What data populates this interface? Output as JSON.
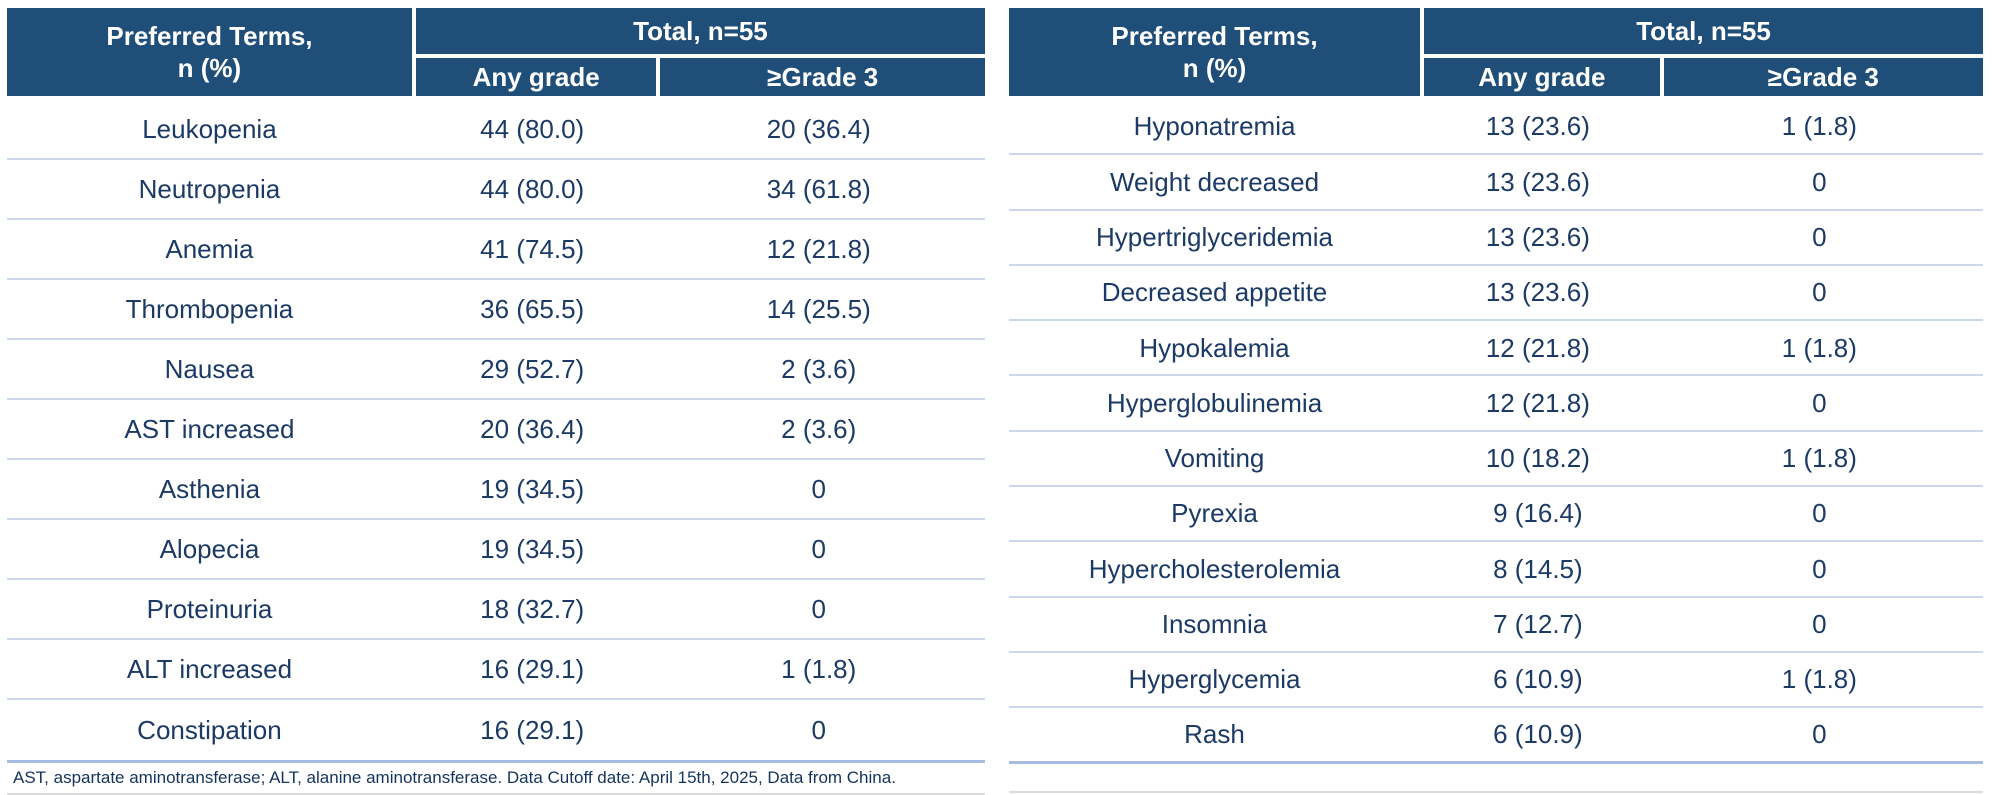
{
  "colors": {
    "header_bg": "#1F4E79",
    "header_text": "#FFFFFF",
    "body_text": "#1B3A66",
    "row_divider": "#CCD7EB",
    "closing_rule": "#A6BCE0",
    "bottom_hairline": "#DCDCDC",
    "page_bg": "#FFFFFF"
  },
  "left_table": {
    "header": {
      "preferred_terms_line1": "Preferred Terms,",
      "preferred_terms_line2": "n (%)",
      "total": "Total, n=55",
      "any_grade": "Any grade",
      "grade3": "≥Grade 3"
    },
    "rows": [
      {
        "term": "Leukopenia",
        "any_grade": "44 (80.0)",
        "grade3": "20 (36.4)"
      },
      {
        "term": "Neutropenia",
        "any_grade": "44 (80.0)",
        "grade3": "34 (61.8)"
      },
      {
        "term": "Anemia",
        "any_grade": "41 (74.5)",
        "grade3": "12 (21.8)"
      },
      {
        "term": "Thrombopenia",
        "any_grade": "36 (65.5)",
        "grade3": "14 (25.5)"
      },
      {
        "term": "Nausea",
        "any_grade": "29 (52.7)",
        "grade3": "2 (3.6)"
      },
      {
        "term": "AST increased",
        "any_grade": "20 (36.4)",
        "grade3": "2 (3.6)"
      },
      {
        "term": "Asthenia",
        "any_grade": "19 (34.5)",
        "grade3": "0"
      },
      {
        "term": "Alopecia",
        "any_grade": "19 (34.5)",
        "grade3": "0"
      },
      {
        "term": "Proteinuria",
        "any_grade": "18 (32.7)",
        "grade3": "0"
      },
      {
        "term": "ALT increased",
        "any_grade": "16 (29.1)",
        "grade3": "1 (1.8)"
      },
      {
        "term": "Constipation",
        "any_grade": "16 (29.1)",
        "grade3": "0"
      }
    ],
    "footnote": "AST, aspartate aminotransferase; ALT, alanine aminotransferase. Data Cutoff date: April 15th, 2025, Data from China."
  },
  "right_table": {
    "header": {
      "preferred_terms_line1": "Preferred Terms,",
      "preferred_terms_line2": "n (%)",
      "total": "Total, n=55",
      "any_grade": "Any grade",
      "grade3": "≥Grade 3"
    },
    "rows": [
      {
        "term": "Hyponatremia",
        "any_grade": "13 (23.6)",
        "grade3": "1 (1.8)"
      },
      {
        "term": "Weight decreased",
        "any_grade": "13 (23.6)",
        "grade3": "0"
      },
      {
        "term": "Hypertriglyceridemia",
        "any_grade": "13 (23.6)",
        "grade3": "0"
      },
      {
        "term": "Decreased appetite",
        "any_grade": "13 (23.6)",
        "grade3": "0"
      },
      {
        "term": "Hypokalemia",
        "any_grade": "12 (21.8)",
        "grade3": "1 (1.8)"
      },
      {
        "term": "Hyperglobulinemia",
        "any_grade": "12 (21.8)",
        "grade3": "0"
      },
      {
        "term": "Vomiting",
        "any_grade": "10 (18.2)",
        "grade3": "1 (1.8)"
      },
      {
        "term": "Pyrexia",
        "any_grade": "9 (16.4)",
        "grade3": "0"
      },
      {
        "term": "Hypercholesterolemia",
        "any_grade": "8 (14.5)",
        "grade3": "0"
      },
      {
        "term": "Insomnia",
        "any_grade": "7 (12.7)",
        "grade3": "0"
      },
      {
        "term": "Hyperglycemia",
        "any_grade": "6 (10.9)",
        "grade3": "1 (1.8)"
      },
      {
        "term": "Rash",
        "any_grade": "6 (10.9)",
        "grade3": "0"
      }
    ]
  }
}
